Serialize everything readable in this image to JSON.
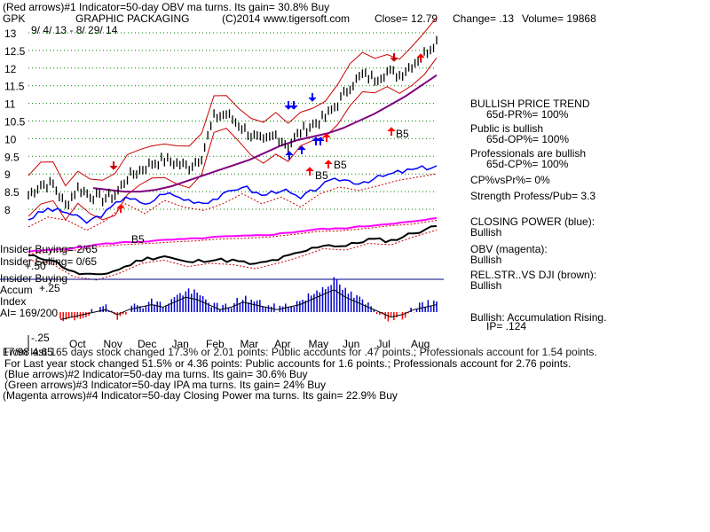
{
  "header": {
    "line1": "(Red arrows)#1 Indicator=50-day OBV ma turns. Its gain= 30.8% Buy",
    "ticker": "GPK",
    "company": "GRAPHIC PACKAGING",
    "copyright": "(C)2014 www.tigersoft.com",
    "close": "Close= 12.79",
    "change": "Change= .13",
    "volume": "Volume= 19868",
    "date_range": "9/ 4/ 13 - 8/ 29/ 14"
  },
  "colors": {
    "price": "#000000",
    "bands": "#cc0000",
    "ma65": "#800080",
    "closing_power": "#0000ff",
    "obv": "#ff00ff",
    "rel_str": "#000000",
    "accum_bars": "#0000cc",
    "accum_neg": "#ff0000",
    "gridline": "#008000",
    "sell_arrow": "#cc0000",
    "buy_arrow_red": "#ff0000",
    "buy_arrow_blue": "#0000ff",
    "divider": "#000080"
  },
  "side_panel": {
    "trend_title": "BULLISH PRICE TREND",
    "pr": "65d-PR%= 100%",
    "public_title": "Public is bullish",
    "op": "65d-OP%= 100%",
    "pros_title": "Professionals are bullish",
    "cp": "65d-CP%= 100%",
    "cpvspr": "CP%vsPr%= 0%",
    "strength": "Strength Profess/Pub= 3.3",
    "closing_power_title": "CLOSING POWER (blue):",
    "closing_power_val": "Bullish",
    "obv_title": "OBV (magenta):",
    "obv_val": "Bullish",
    "relstr_title": "REL.STR..VS DJI (brown):",
    "relstr_val": "Bullish",
    "accum_title": "Bullish: Accumulation Rising.",
    "ip": "IP= .124"
  },
  "left_labels": {
    "insider_buying": "Insider Buying= 2/65",
    "insider_selling": "Insider Selling= 0/65",
    "insider_buying2": "Insider Buying",
    "accum": "Accum",
    "index": "Index",
    "ai": "AI= 169/200",
    "plus50": "+.50",
    "plus25": "+.25",
    "minus25": "-.25"
  },
  "footer": {
    "line1": "From last 165 days stock changed 17.3% or 2.01 points: Public accounts for .47 points.; Professionals account for 1.54 points.",
    "line1_prefix": "17/98 4:65",
    "line2": "For Last year stock changed 51.5% or 4.36 points: Public accounts for 1.6 points.; Professionals account for 2.76 points.",
    "line3": "(Blue arrows)#2 Indicator=50-day ma turns. Its gain= 30.6% Buy",
    "line4": "(Green arrows)#3 Indicator=50-day IPA ma turns. Its gain= 24% Buy",
    "line5": "(Magenta arrows)#4 Indicator=50-day Closing Power ma turns. Its gain= 22.9% Buy"
  },
  "chart_data": {
    "type": "line",
    "y_ticks": [
      "13",
      "12.5",
      "12",
      "11.5",
      "11",
      "10.5",
      "10",
      "9.5",
      "9",
      "8.5",
      "8"
    ],
    "ylim": [
      8,
      13
    ],
    "grid": true,
    "x_tick_labels": [
      "Oct",
      "Nov",
      "Dec",
      "Jan",
      "Feb",
      "Mar",
      "Apr",
      "May",
      "Jun",
      "Jul",
      "Aug"
    ],
    "annotations": [
      {
        "text": "B5",
        "x": "Nov"
      },
      {
        "text": "B5",
        "x": "May"
      },
      {
        "text": "B5",
        "x": "May"
      },
      {
        "text": "B5",
        "x": "Jul"
      }
    ],
    "series": [
      {
        "name": "Closing Power",
        "role": "closing_power"
      },
      {
        "name": "OBV",
        "role": "obv"
      },
      {
        "name": "Rel.Str. vs DJI",
        "role": "rel_str"
      }
    ],
    "price_trend": [
      8.4,
      8.7,
      8.7,
      8.1,
      8.6,
      8.4,
      8.3,
      8.4,
      8.9,
      9.1,
      9.3,
      9.4,
      9.3,
      9.2,
      9.5,
      10.6,
      10.7,
      10.4,
      10.1,
      9.9,
      10.1,
      9.8,
      10.2,
      10.4,
      10.6,
      11.0,
      11.5,
      11.8,
      11.7,
      11.9,
      11.8,
      12.1,
      12.4,
      12.79
    ],
    "ma_trend": [
      8.6,
      8.55,
      8.5,
      8.5,
      8.55,
      8.65,
      8.8,
      8.95,
      9.1,
      9.25,
      9.4,
      9.6,
      9.8,
      9.95,
      10.05,
      10.15,
      10.3,
      10.5,
      10.7,
      10.95,
      11.2,
      11.5,
      11.8
    ],
    "closing_power": [
      0.2,
      0.35,
      0.3,
      0.15,
      0.3,
      0.55,
      0.4,
      0.6,
      0.5,
      0.45,
      0.55,
      0.7,
      0.55,
      0.65,
      0.5,
      0.7,
      0.8,
      0.75,
      0.82,
      0.9,
      0.95,
      1.0
    ],
    "obv": [
      0.1,
      0.15,
      0.2,
      0.3,
      0.35,
      0.38,
      0.42,
      0.45,
      0.5,
      0.52,
      0.55,
      0.62,
      0.7,
      0.72,
      0.78,
      0.85,
      0.9,
      1.0
    ],
    "rel_str": [
      0.55,
      0.5,
      0.3,
      0.25,
      0.35,
      0.5,
      0.55,
      0.45,
      0.5,
      0.48,
      0.42,
      0.5,
      0.6,
      0.72,
      0.7,
      0.8,
      0.78,
      0.9,
      1.0
    ],
    "accum_index": [
      -0.15,
      -0.1,
      -0.05,
      0.0,
      0.05,
      -0.05,
      0.05,
      0.1,
      0.15,
      0.1,
      0.2,
      0.3,
      0.25,
      0.15,
      0.05,
      0.1,
      0.2,
      0.15,
      0.1,
      0.05,
      0.1,
      0.15,
      0.25,
      0.35,
      0.45,
      0.3,
      0.2,
      0.1,
      0.0,
      -0.1,
      -0.05,
      0.05,
      0.1,
      0.15
    ]
  }
}
